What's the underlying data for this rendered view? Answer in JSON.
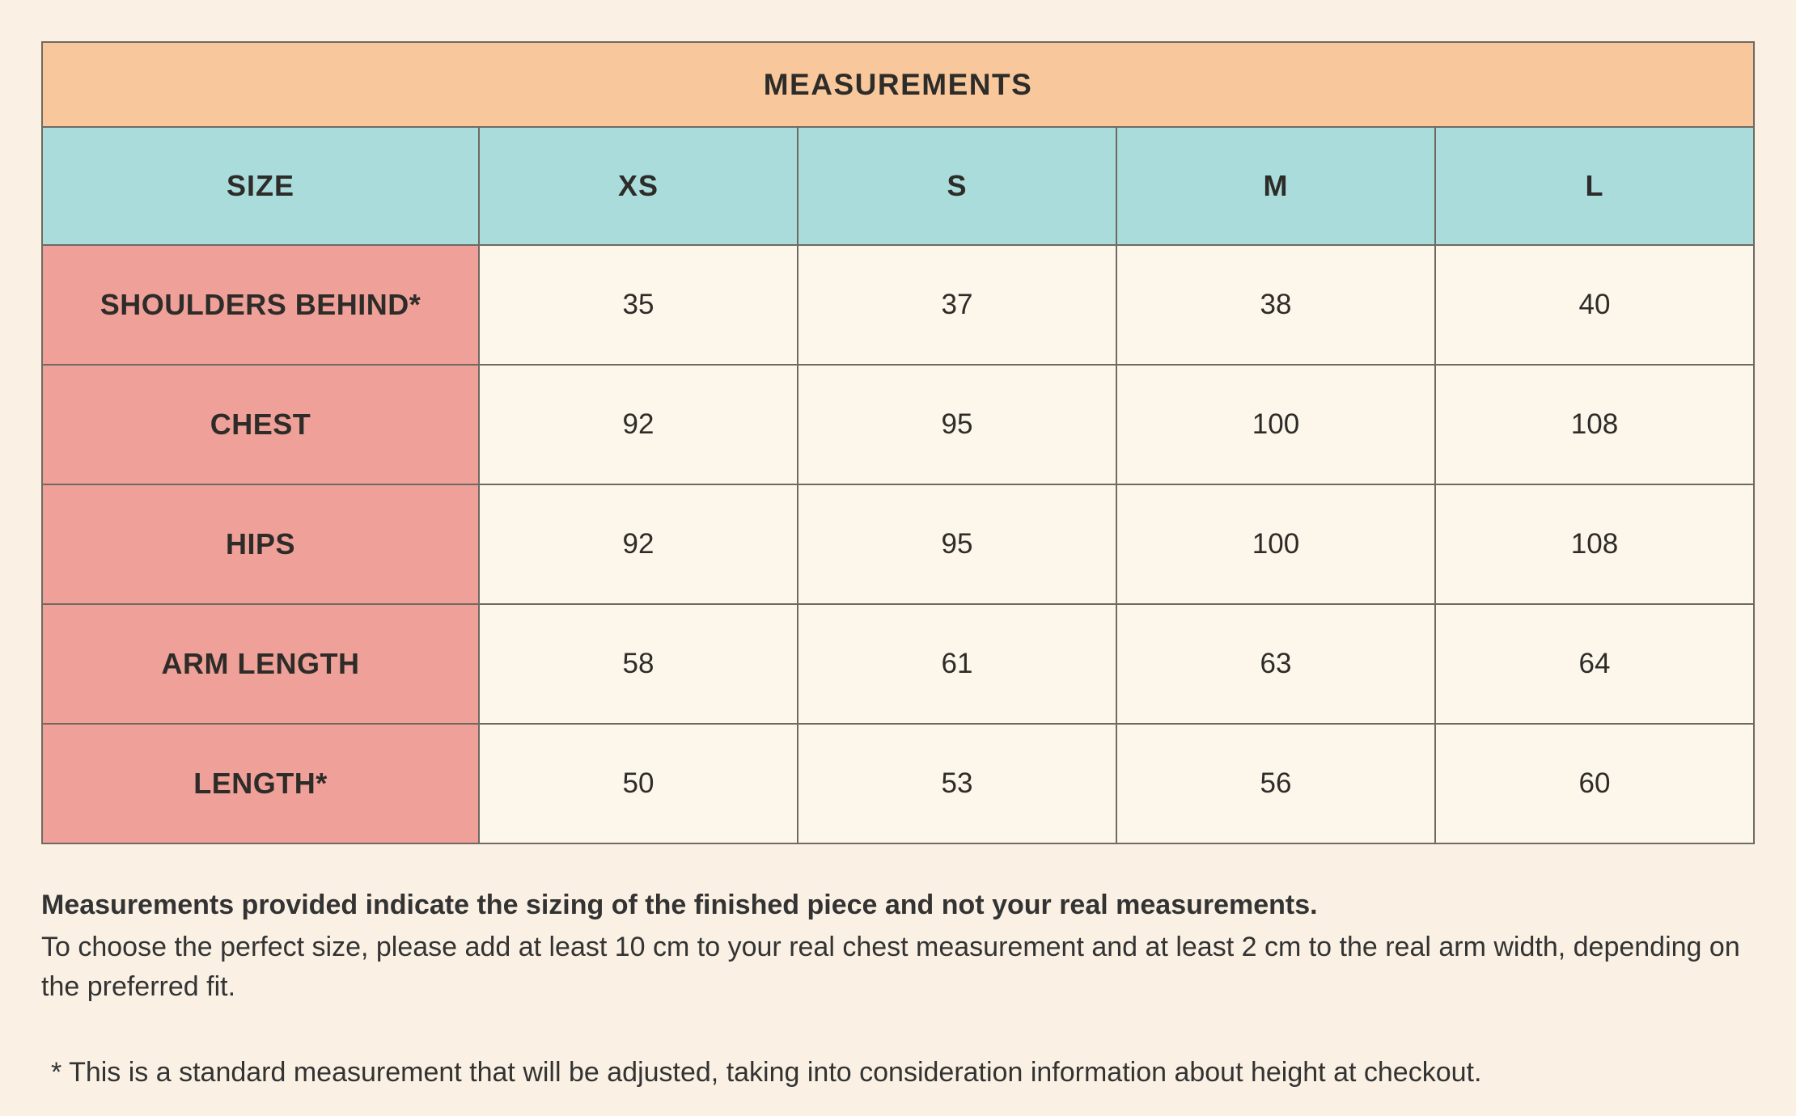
{
  "colors": {
    "background": "#FAF1E4",
    "title_bg": "#F9C79C",
    "header_bg": "#A9DCDB",
    "label_bg": "#EFA098",
    "cell_bg": "#FDF6EB",
    "border": "#6E6A62",
    "text": "#2E2C29"
  },
  "table": {
    "title": "MEASUREMENTS",
    "columns": [
      "SIZE",
      "XS",
      "S",
      "M",
      "L"
    ],
    "rows": [
      {
        "label": "SHOULDERS BEHIND*",
        "values": [
          "35",
          "37",
          "38",
          "40"
        ]
      },
      {
        "label": "CHEST",
        "values": [
          "92",
          "95",
          "100",
          "108"
        ]
      },
      {
        "label": "HIPS",
        "values": [
          "92",
          "95",
          "100",
          "108"
        ]
      },
      {
        "label": "ARM LENGTH",
        "values": [
          "58",
          "61",
          "63",
          "64"
        ]
      },
      {
        "label": "LENGTH*",
        "values": [
          "50",
          "53",
          "56",
          "60"
        ]
      }
    ]
  },
  "notes": {
    "bold": "Measurements provided indicate the sizing of the finished piece and not your real measurements.",
    "body": "To choose the perfect size, please add at least 10 cm to your real chest measurement and at least 2 cm to the real arm width, depending on the preferred fit.",
    "asterisk": "* This is a standard measurement that will be adjusted, taking into consideration information about height at checkout."
  }
}
